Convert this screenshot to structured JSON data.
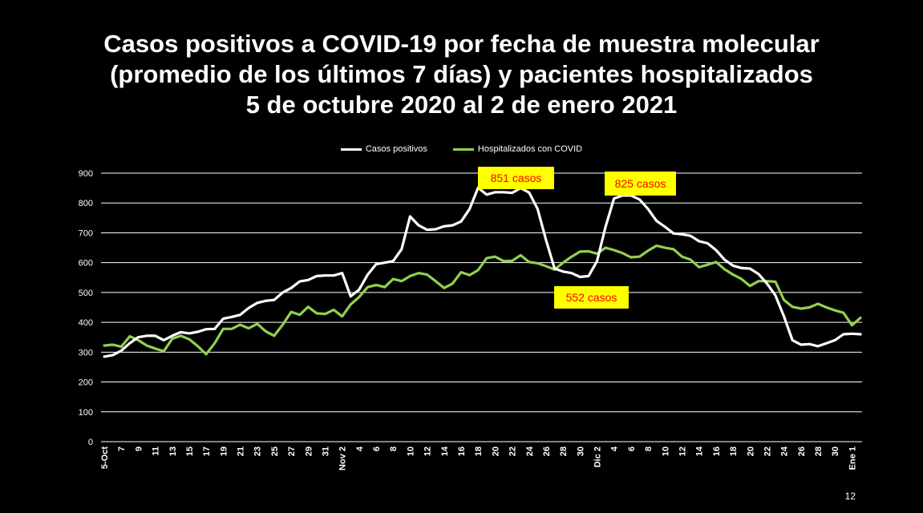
{
  "title": {
    "line1": "Casos positivos a COVID-19 por fecha de muestra molecular",
    "line2": "(promedio de los últimos 7 días) y pacientes hospitalizados",
    "line3": "5 de octubre 2020 al 2 de enero 2021"
  },
  "page_number": "12",
  "colors": {
    "casos": "#ffffff",
    "hosp": "#92d050",
    "annotation_bg": "#ffff00",
    "annotation_text": "#ff0000",
    "grid": "#ffffff"
  },
  "chart_data": {
    "type": "line",
    "ylim": [
      0,
      900
    ],
    "yticks": [
      0,
      100,
      200,
      300,
      400,
      500,
      600,
      700,
      800,
      900
    ],
    "grid": true,
    "legend_position": "top",
    "x_tick_labels": [
      "5-Oct",
      "7",
      "9",
      "11",
      "13",
      "15",
      "17",
      "19",
      "21",
      "23",
      "25",
      "27",
      "29",
      "31",
      "Nov 2",
      "4",
      "6",
      "8",
      "10",
      "12",
      "14",
      "16",
      "18",
      "20",
      "22",
      "24",
      "26",
      "28",
      "30",
      "Dic 2",
      "4",
      "6",
      "8",
      "10",
      "12",
      "14",
      "16",
      "18",
      "20",
      "22",
      "24",
      "26",
      "28",
      "30",
      "Ene 1"
    ],
    "series": [
      {
        "name": "Casos positivos",
        "values": [
          285,
          290,
          305,
          330,
          350,
          355,
          355,
          340,
          355,
          367,
          363,
          368,
          377,
          378,
          412,
          418,
          425,
          448,
          465,
          472,
          475,
          500,
          515,
          537,
          542,
          555,
          557,
          557,
          565,
          487,
          510,
          560,
          595,
          600,
          605,
          645,
          755,
          725,
          710,
          712,
          722,
          725,
          738,
          780,
          851,
          828,
          836,
          836,
          834,
          850,
          835,
          780,
          675,
          580,
          570,
          565,
          552,
          555,
          605,
          720,
          815,
          825,
          825,
          812,
          780,
          740,
          720,
          698,
          695,
          690,
          672,
          665,
          642,
          610,
          590,
          582,
          580,
          562,
          530,
          490,
          420,
          340,
          325,
          327,
          320,
          330,
          340,
          360,
          362,
          360
        ]
      },
      {
        "name": "Hospitalizados con COVID",
        "values": [
          322,
          325,
          318,
          353,
          340,
          322,
          312,
          303,
          345,
          355,
          343,
          320,
          293,
          330,
          378,
          378,
          392,
          380,
          395,
          370,
          355,
          392,
          435,
          425,
          452,
          430,
          428,
          442,
          420,
          460,
          485,
          518,
          525,
          518,
          545,
          538,
          555,
          565,
          560,
          538,
          515,
          530,
          568,
          558,
          575,
          615,
          620,
          605,
          606,
          625,
          602,
          598,
          588,
          577,
          600,
          620,
          637,
          638,
          630,
          650,
          642,
          632,
          618,
          620,
          640,
          657,
          650,
          645,
          620,
          610,
          585,
          593,
          602,
          578,
          560,
          545,
          522,
          538,
          538,
          536,
          475,
          452,
          446,
          450,
          462,
          450,
          440,
          432,
          390,
          415
        ]
      }
    ],
    "annotations": [
      {
        "text": "851 casos"
      },
      {
        "text": "825 casos"
      },
      {
        "text": "552 casos"
      }
    ]
  }
}
